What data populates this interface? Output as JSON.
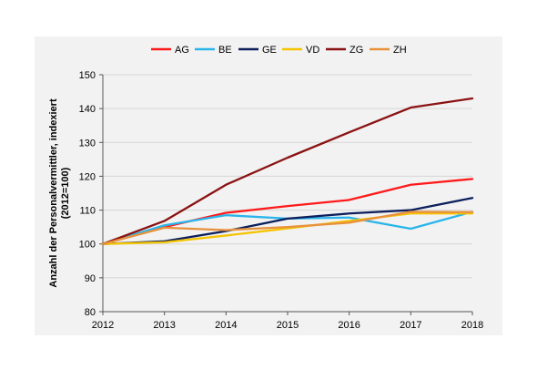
{
  "chart_data": {
    "type": "line",
    "title": "",
    "xlabel": "",
    "ylabel": "Anzahl der Personalvermittler, indexiert (2012=100)",
    "ylabel_lines": [
      "Anzahl der Personalvermittler, indexiert",
      "(2012=100)"
    ],
    "x": [
      2012,
      2013,
      2014,
      2015,
      2016,
      2017,
      2018
    ],
    "x_tick_labels": [
      "2012",
      "2013",
      "2014",
      "2015",
      "2016",
      "2017",
      "2018"
    ],
    "ylim": [
      80,
      150
    ],
    "y_ticks": [
      80,
      90,
      100,
      110,
      120,
      130,
      140,
      150
    ],
    "grid": "horizontal",
    "legend_position": "top",
    "series": [
      {
        "name": "AG",
        "color": "#ff1a1a",
        "values": [
          100,
          105,
          109.2,
          111.2,
          113,
          117.5,
          119.2
        ]
      },
      {
        "name": "BE",
        "color": "#29b5ea",
        "values": [
          100,
          105.5,
          108.5,
          107.5,
          107.8,
          104.5,
          109.5
        ]
      },
      {
        "name": "GE",
        "color": "#0d1f5c",
        "values": [
          100,
          100.8,
          103.8,
          107.5,
          109,
          110,
          113.6
        ]
      },
      {
        "name": "VD",
        "color": "#f5c400",
        "values": [
          100,
          100.5,
          102.5,
          104.6,
          106.8,
          109,
          109
        ]
      },
      {
        "name": "ZG",
        "color": "#8b1212",
        "values": [
          100,
          106.8,
          117.5,
          125.5,
          133,
          140.3,
          143
        ]
      },
      {
        "name": "ZH",
        "color": "#e8913d",
        "values": [
          100,
          104.8,
          104.1,
          105,
          106.3,
          109.5,
          109.4
        ]
      }
    ]
  }
}
